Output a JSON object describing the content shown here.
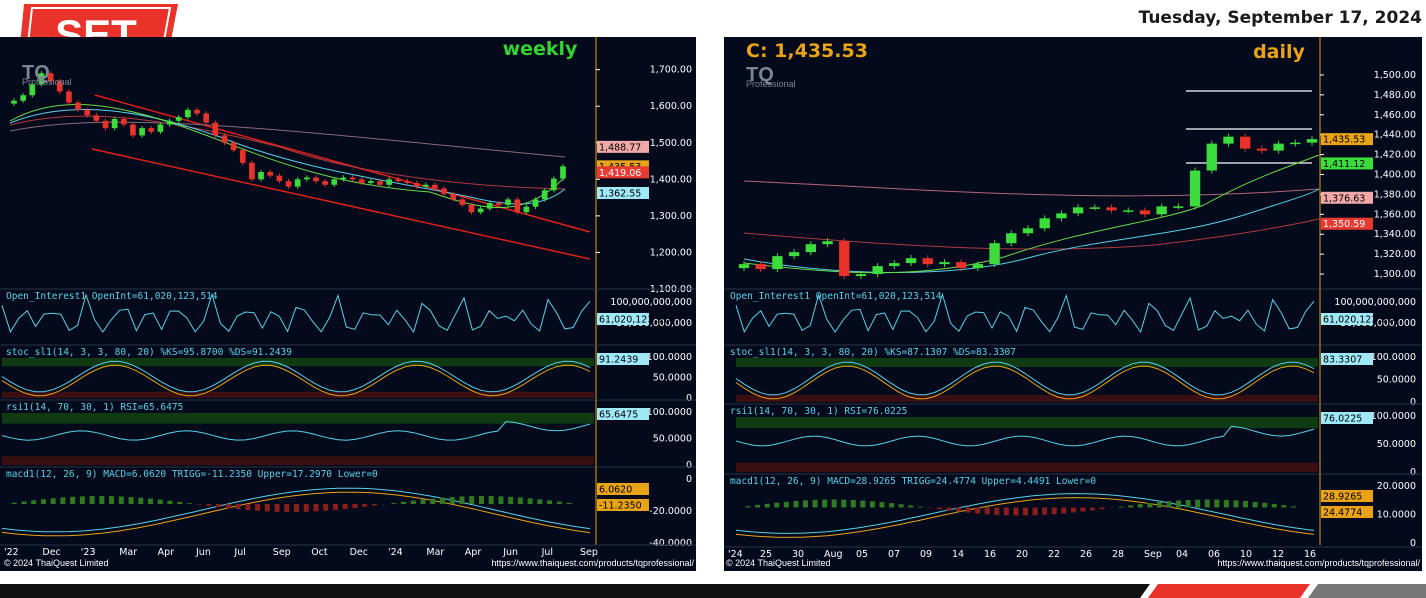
{
  "header": {
    "logo_text": "SET",
    "date": "Tuesday, September 17, 2024"
  },
  "colors": {
    "panel_bg": "#020a1c",
    "up_candle": "#3ddc3d",
    "down_candle": "#e8322a",
    "trend_line": "#e0201a",
    "timeframe_label": "#34d334",
    "close_label": "#e8a317",
    "indicator_line": "#5ad0e8",
    "stoch_d": "#e8a317"
  },
  "weekly": {
    "timeframe": "weekly",
    "watermark": "TQ",
    "watermark_sub": "Professional",
    "price_axis": [
      "1,700.00",
      "1,600.00",
      "1,500.00",
      "1,400.00",
      "1,300.00",
      "1,200.00",
      "1,100.00"
    ],
    "price_badges": [
      {
        "text": "1,488.77",
        "bg": "#f0a8a8",
        "fg": "#000000"
      },
      {
        "text": "1,435.53",
        "bg": "#e8a317",
        "fg": "#000000"
      },
      {
        "text": "1,419.06",
        "bg": "#e83a32",
        "fg": "#ffffff"
      },
      {
        "text": "1,362.55",
        "bg": "#9ee8f8",
        "fg": "#000000"
      }
    ],
    "oi_label": "Open_Interest1 OpenInt=61,020,123,514",
    "oi_axis": [
      "100,000,000,000",
      "50,000,000,000"
    ],
    "oi_badge": "61,020,123,514",
    "stoch_label": "stoc_sl1(14, 3, 3, 80, 20) %KS=95.8700 %DS=91.2439",
    "stoch_axis": [
      "100.0000",
      "50.0000",
      "0"
    ],
    "stoch_badge": "91.2439",
    "rsi_label": "rsi1(14, 70, 30, 1) RSI=65.6475",
    "rsi_axis": [
      "100.0000",
      "50.0000",
      "0"
    ],
    "rsi_badge": "65.6475",
    "macd_label": "macd1(12, 26, 9) MACD=6.0620 TRIGG=-11.2350 Upper=17.2970 Lower=0",
    "macd_axis": [
      "0",
      "-20.0000",
      "-40.0000"
    ],
    "macd_badges": [
      "6.0620",
      "-11.2350"
    ],
    "date_axis": [
      "'22",
      "Dec",
      "'23",
      "Mar",
      "Apr",
      "Jun",
      "Jul",
      "Sep",
      "Oct",
      "Dec",
      "'24",
      "Mar",
      "Apr",
      "Jun",
      "Jul",
      "Sep"
    ],
    "copyright": "© 2024 ThaiQuest Limited",
    "url": "https://www.thaiquest.com/products/tqprofessional/"
  },
  "daily": {
    "timeframe": "daily",
    "close_label": "C: 1,435.53",
    "watermark": "TQ",
    "watermark_sub": "Professional",
    "price_axis": [
      "1,500.00",
      "1,480.00",
      "1,460.00",
      "1,440.00",
      "1,420.00",
      "1,400.00",
      "1,380.00",
      "1,360.00",
      "1,340.00",
      "1,320.00",
      "1,300.00"
    ],
    "price_badges": [
      {
        "text": "1,435.53",
        "bg": "#e8a317",
        "fg": "#000000"
      },
      {
        "text": "1,411.12",
        "bg": "#3ddc3d",
        "fg": "#000000"
      },
      {
        "text": "1,376.63",
        "bg": "#f0a8a8",
        "fg": "#000000"
      },
      {
        "text": "1,350.59",
        "bg": "#e83a32",
        "fg": "#ffffff"
      }
    ],
    "oi_label": "Open_Interest1 OpenInt=61,020,123,514",
    "oi_axis": [
      "100,000,000,000",
      "50,000,000,000"
    ],
    "oi_badge": "61,020,123,514",
    "stoch_label": "stoc_sl1(14, 3, 3, 80, 20) %KS=87.1307 %DS=83.3307",
    "stoch_axis": [
      "100.0000",
      "50.0000",
      "0"
    ],
    "stoch_badge": "83.3307",
    "rsi_label": "rsi1(14, 70, 30, 1) RSI=76.0225",
    "rsi_axis": [
      "100.0000",
      "50.0000",
      "0"
    ],
    "rsi_badge": "76.0225",
    "macd_label": "macd1(12, 26, 9) MACD=28.9265 TRIGG=24.4774 Upper=4.4491 Lower=0",
    "macd_axis": [
      "20.0000",
      "10.0000",
      "0"
    ],
    "macd_badges": [
      "28.9265",
      "24.4774"
    ],
    "date_axis": [
      "'24",
      "25",
      "30",
      "Aug",
      "05",
      "07",
      "09",
      "14",
      "16",
      "20",
      "22",
      "26",
      "28",
      "Sep",
      "04",
      "06",
      "10",
      "12",
      "16"
    ],
    "copyright": "© 2024 ThaiQuest Limited",
    "url": "https://www.thaiquest.com/products/tqprofessional/"
  },
  "chart_data": [
    {
      "type": "candlestick",
      "title": "weekly",
      "ylim": [
        1100,
        1740
      ],
      "series": [
        {
          "name": "close",
          "values": [
            1615,
            1630,
            1660,
            1690,
            1668,
            1640,
            1610,
            1590,
            1575,
            1560,
            1540,
            1565,
            1550,
            1520,
            1540,
            1530,
            1550,
            1560,
            1570,
            1590,
            1580,
            1555,
            1520,
            1500,
            1480,
            1445,
            1400,
            1420,
            1410,
            1395,
            1380,
            1400,
            1405,
            1395,
            1385,
            1400,
            1405,
            1400,
            1390,
            1395,
            1385,
            1400,
            1395,
            1390,
            1380,
            1385,
            1375,
            1360,
            1345,
            1330,
            1310,
            1320,
            1335,
            1330,
            1345,
            1310,
            1325,
            1345,
            1370,
            1402,
            1435.53
          ]
        }
      ],
      "indicators": {
        "open_interest": 61020123514,
        "stoch_ks": 95.87,
        "stoch_ds": 91.2439,
        "rsi": 65.6475,
        "macd": 6.062,
        "macd_trigger": -11.235
      }
    },
    {
      "type": "candlestick",
      "title": "daily",
      "ylim": [
        1285,
        1510
      ],
      "series": [
        {
          "name": "close",
          "values": [
            1310,
            1305,
            1318,
            1322,
            1330,
            1333,
            1298,
            1300,
            1308,
            1311,
            1316,
            1310,
            1312,
            1306,
            1310,
            1331,
            1341,
            1346,
            1356,
            1361,
            1367,
            1367,
            1364,
            1364,
            1360,
            1368,
            1368,
            1404,
            1431,
            1438,
            1426,
            1424,
            1431,
            1432,
            1435.53
          ]
        }
      ],
      "indicators": {
        "open_interest": 61020123514,
        "stoch_ks": 87.1307,
        "stoch_ds": 83.3307,
        "rsi": 76.0225,
        "macd": 28.9265,
        "macd_trigger": 24.4774
      }
    }
  ]
}
